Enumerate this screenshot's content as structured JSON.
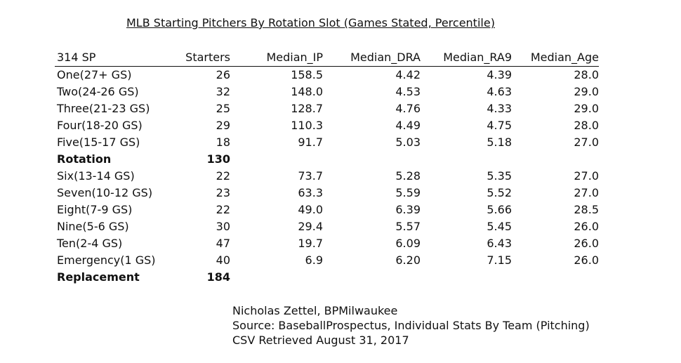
{
  "title": "MLB Starting Pitchers By Rotation Slot (Games Stated, Percentile)",
  "table": {
    "headers": [
      "314 SP",
      "Starters",
      "Median_IP",
      "Median_DRA",
      "Median_RA9",
      "Median_Age"
    ],
    "rows": [
      [
        "One(27+ GS)",
        "26",
        "158.5",
        "4.42",
        "4.39",
        "28.0"
      ],
      [
        "Two(24-26 GS)",
        "32",
        "148.0",
        "4.53",
        "4.63",
        "29.0"
      ],
      [
        "Three(21-23 GS)",
        "25",
        "128.7",
        "4.76",
        "4.33",
        "29.0"
      ],
      [
        "Four(18-20 GS)",
        "29",
        "110.3",
        "4.49",
        "4.75",
        "28.0"
      ],
      [
        "Five(15-17 GS)",
        "18",
        "91.7",
        "5.03",
        "5.18",
        "27.0"
      ],
      [
        "Rotation",
        "130",
        "",
        "",
        "",
        ""
      ],
      [
        "Six(13-14 GS)",
        "22",
        "73.7",
        "5.28",
        "5.35",
        "27.0"
      ],
      [
        "Seven(10-12 GS)",
        "23",
        "63.3",
        "5.59",
        "5.52",
        "27.0"
      ],
      [
        "Eight(7-9 GS)",
        "22",
        "49.0",
        "6.39",
        "5.66",
        "28.5"
      ],
      [
        "Nine(5-6 GS)",
        "30",
        "29.4",
        "5.57",
        "5.45",
        "26.0"
      ],
      [
        "Ten(2-4 GS)",
        "47",
        "19.7",
        "6.09",
        "6.43",
        "26.0"
      ],
      [
        "Emergency(1 GS)",
        "40",
        "6.9",
        "6.20",
        "7.15",
        "26.0"
      ],
      [
        "Replacement",
        "184",
        "",
        "",
        "",
        ""
      ]
    ]
  },
  "credits": {
    "author": "Nicholas Zettel, BPMilwaukee",
    "source": "Source: BaseballProspectus, Individual Stats By Team (Pitching)",
    "retrieved": "CSV Retrieved August 31, 2017"
  }
}
